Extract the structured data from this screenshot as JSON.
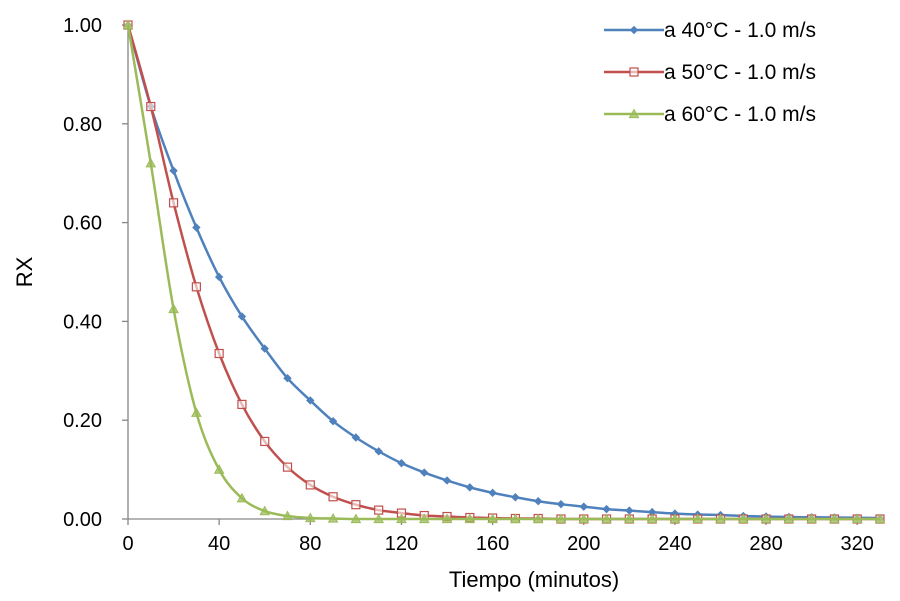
{
  "chart_data": {
    "type": "line",
    "title": "",
    "xlabel": "Tiempo (minutos)",
    "ylabel": "RX",
    "xlim": [
      0,
      330
    ],
    "ylim": [
      0,
      1.0
    ],
    "x_ticks": [
      "0",
      "40",
      "80",
      "120",
      "160",
      "200",
      "240",
      "280",
      "320"
    ],
    "y_ticks": [
      "0.00",
      "0.20",
      "0.40",
      "0.60",
      "0.80",
      "1.00"
    ],
    "grid": false,
    "legend_position": "top-right",
    "x": [
      0,
      10,
      20,
      30,
      40,
      50,
      60,
      70,
      80,
      90,
      100,
      110,
      120,
      130,
      140,
      150,
      160,
      170,
      180,
      190,
      200,
      210,
      220,
      230,
      240,
      250,
      260,
      270,
      280,
      290,
      300,
      310,
      320,
      330
    ],
    "series": [
      {
        "name": "a 40°C - 1.0 m/s",
        "color": "#4F81BD",
        "marker": "diamond",
        "values": [
          1.0,
          0.835,
          0.705,
          0.59,
          0.49,
          0.41,
          0.345,
          0.285,
          0.24,
          0.198,
          0.165,
          0.137,
          0.113,
          0.094,
          0.078,
          0.064,
          0.053,
          0.044,
          0.036,
          0.03,
          0.025,
          0.02,
          0.017,
          0.014,
          0.011,
          0.009,
          0.008,
          0.006,
          0.005,
          0.004,
          0.0035,
          0.003,
          0.0025,
          0.002
        ]
      },
      {
        "name": "a 50°C - 1.0 m/s",
        "color": "#C0504D",
        "marker": "square",
        "values": [
          1.0,
          0.835,
          0.64,
          0.47,
          0.335,
          0.232,
          0.157,
          0.105,
          0.069,
          0.045,
          0.029,
          0.018,
          0.012,
          0.007,
          0.005,
          0.003,
          0.002,
          0.001,
          0.001,
          0.0,
          0.0,
          0.0,
          0.0,
          0.0,
          0.0,
          0.0,
          0.0,
          0.0,
          0.0,
          0.0,
          0.0,
          0.0,
          0.0,
          0.0
        ]
      },
      {
        "name": "a 60°C - 1.0 m/s",
        "color": "#9BBB59",
        "marker": "triangle",
        "values": [
          1.0,
          0.72,
          0.425,
          0.215,
          0.1,
          0.042,
          0.016,
          0.006,
          0.002,
          0.001,
          0.0,
          0.0,
          0.0,
          0.0,
          0.0,
          0.0,
          0.0,
          0.0,
          0.0,
          0.0,
          0.0,
          0.0,
          0.0,
          0.0,
          0.0,
          0.0,
          0.0,
          0.0,
          0.0,
          0.0,
          0.0,
          0.0,
          0.0,
          0.0
        ]
      }
    ]
  }
}
